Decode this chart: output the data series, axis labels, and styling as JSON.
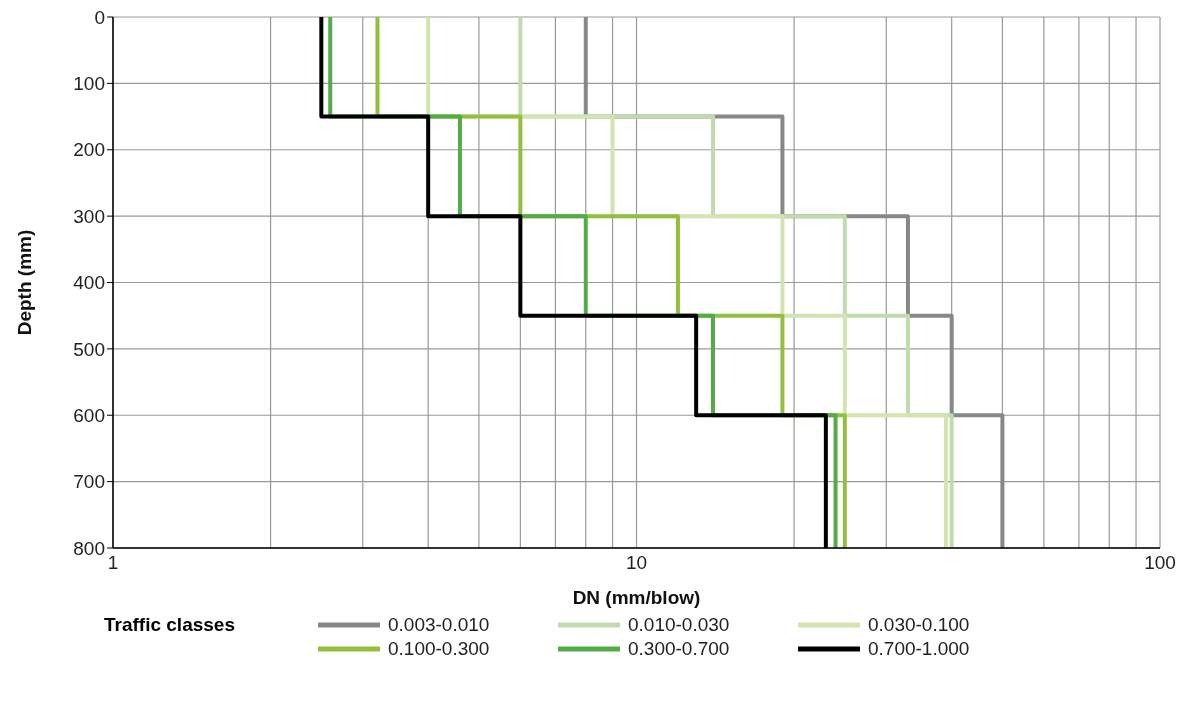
{
  "chart_data": {
    "type": "line",
    "xlabel": "DN (mm/blow)",
    "ylabel": "Depth (mm)",
    "legend_title": "Traffic classes",
    "log": "x",
    "xlim": [
      1,
      100
    ],
    "xticks": [
      1,
      {
        "value": 2,
        "label": null
      },
      {
        "value": 3,
        "label": null
      },
      {
        "value": 4,
        "label": null
      },
      {
        "value": 5,
        "label": null
      },
      {
        "value": 6,
        "label": null
      },
      {
        "value": 7,
        "label": null
      },
      {
        "value": 8,
        "label": null
      },
      {
        "value": 9,
        "label": null
      },
      10,
      {
        "value": 20,
        "label": null
      },
      {
        "value": 30,
        "label": null
      },
      {
        "value": 40,
        "label": null
      },
      {
        "value": 50,
        "label": null
      },
      {
        "value": 60,
        "label": null
      },
      {
        "value": 70,
        "label": null
      },
      {
        "value": 80,
        "label": null
      },
      {
        "value": 90,
        "label": null
      },
      100
    ],
    "ylim": [
      800,
      0
    ],
    "yticks": [
      0,
      100,
      200,
      300,
      400,
      500,
      600,
      700,
      800
    ],
    "grid": true,
    "legend": "bottom",
    "marker": "none",
    "line_style": "solid",
    "series": [
      {
        "name": "0.003-0.010",
        "color": "#87888a",
        "x": [
          8,
          8,
          19,
          19,
          33,
          33,
          40,
          40,
          50,
          50
        ],
        "values": [
          0,
          150,
          150,
          300,
          300,
          450,
          450,
          600,
          600,
          800
        ]
      },
      {
        "name": "0.010-0.030",
        "color": "#c0dcaf",
        "x": [
          6,
          6,
          14,
          14,
          25,
          25,
          33,
          33,
          40,
          40
        ],
        "values": [
          0,
          150,
          150,
          300,
          300,
          450,
          450,
          600,
          600,
          800
        ]
      },
      {
        "name": "0.030-0.100",
        "color": "#d4e4b0",
        "x": [
          4,
          4,
          9,
          9,
          19,
          19,
          25,
          25,
          39,
          39
        ],
        "values": [
          0,
          150,
          150,
          300,
          300,
          450,
          450,
          600,
          600,
          800
        ]
      },
      {
        "name": "0.100-0.300",
        "color": "#93bf3c",
        "x": [
          3.2,
          3.2,
          6,
          6,
          12,
          12,
          19,
          19,
          25,
          25
        ],
        "values": [
          0,
          150,
          150,
          300,
          300,
          450,
          450,
          600,
          600,
          800
        ]
      },
      {
        "name": "0.300-0.700",
        "color": "#52ad48",
        "x": [
          2.6,
          2.6,
          4.6,
          4.6,
          8,
          8,
          14,
          14,
          24,
          24
        ],
        "values": [
          0,
          150,
          150,
          300,
          300,
          450,
          450,
          600,
          600,
          800
        ]
      },
      {
        "name": "0.700-1.000",
        "color": "#000000",
        "x": [
          2.5,
          2.5,
          4,
          4,
          6,
          6,
          13,
          13,
          23,
          23
        ],
        "values": [
          0,
          150,
          150,
          300,
          300,
          450,
          450,
          600,
          600,
          800
        ]
      }
    ]
  }
}
